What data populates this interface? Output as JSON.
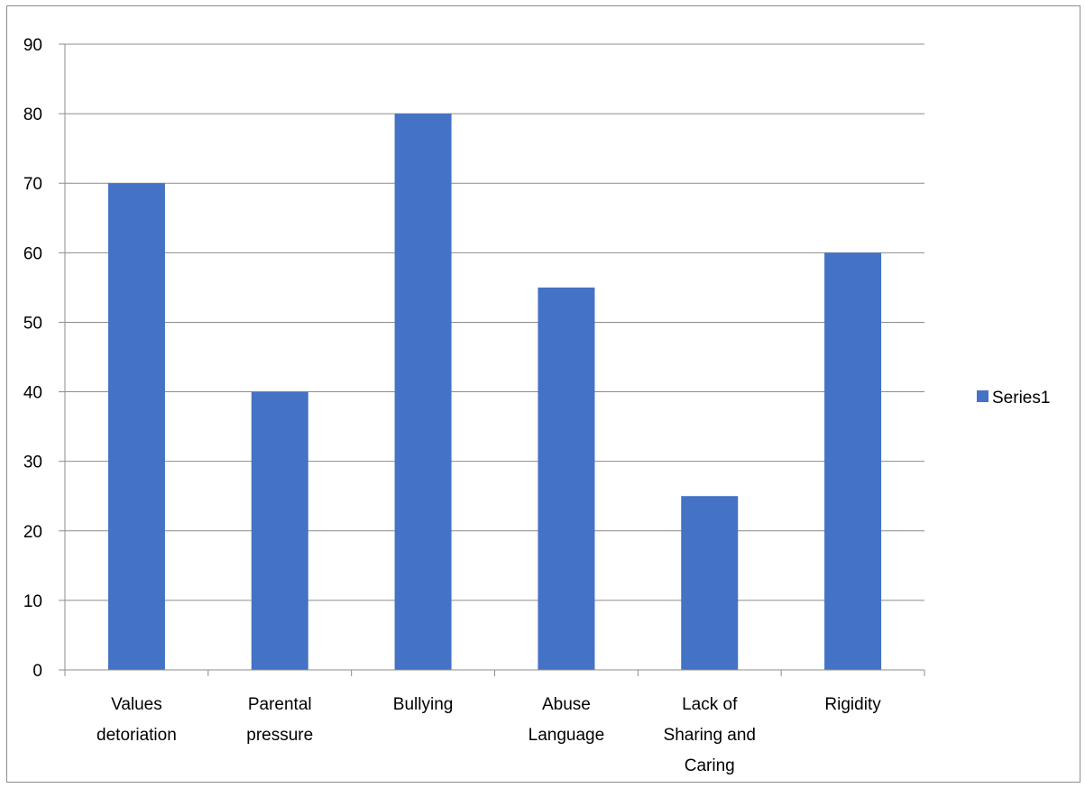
{
  "chart_data": {
    "type": "bar",
    "categories": [
      [
        "Values",
        "detoriation"
      ],
      [
        "Parental",
        "pressure"
      ],
      [
        "Bullying"
      ],
      [
        "Abuse",
        "Language"
      ],
      [
        "Lack of",
        "Sharing and",
        "Caring"
      ],
      [
        "Rigidity"
      ]
    ],
    "series": [
      {
        "name": "Series1",
        "values": [
          70,
          40,
          80,
          55,
          25,
          60
        ]
      }
    ],
    "ylim": [
      0,
      90
    ],
    "yticks": [
      0,
      10,
      20,
      30,
      40,
      50,
      60,
      70,
      80,
      90
    ],
    "title": "",
    "xlabel": "",
    "ylabel": "",
    "grid": true,
    "legend_position": "right",
    "colors": {
      "bar": "#4472C4",
      "grid": "#8c8c8c",
      "axis": "#8c8c8c"
    }
  }
}
